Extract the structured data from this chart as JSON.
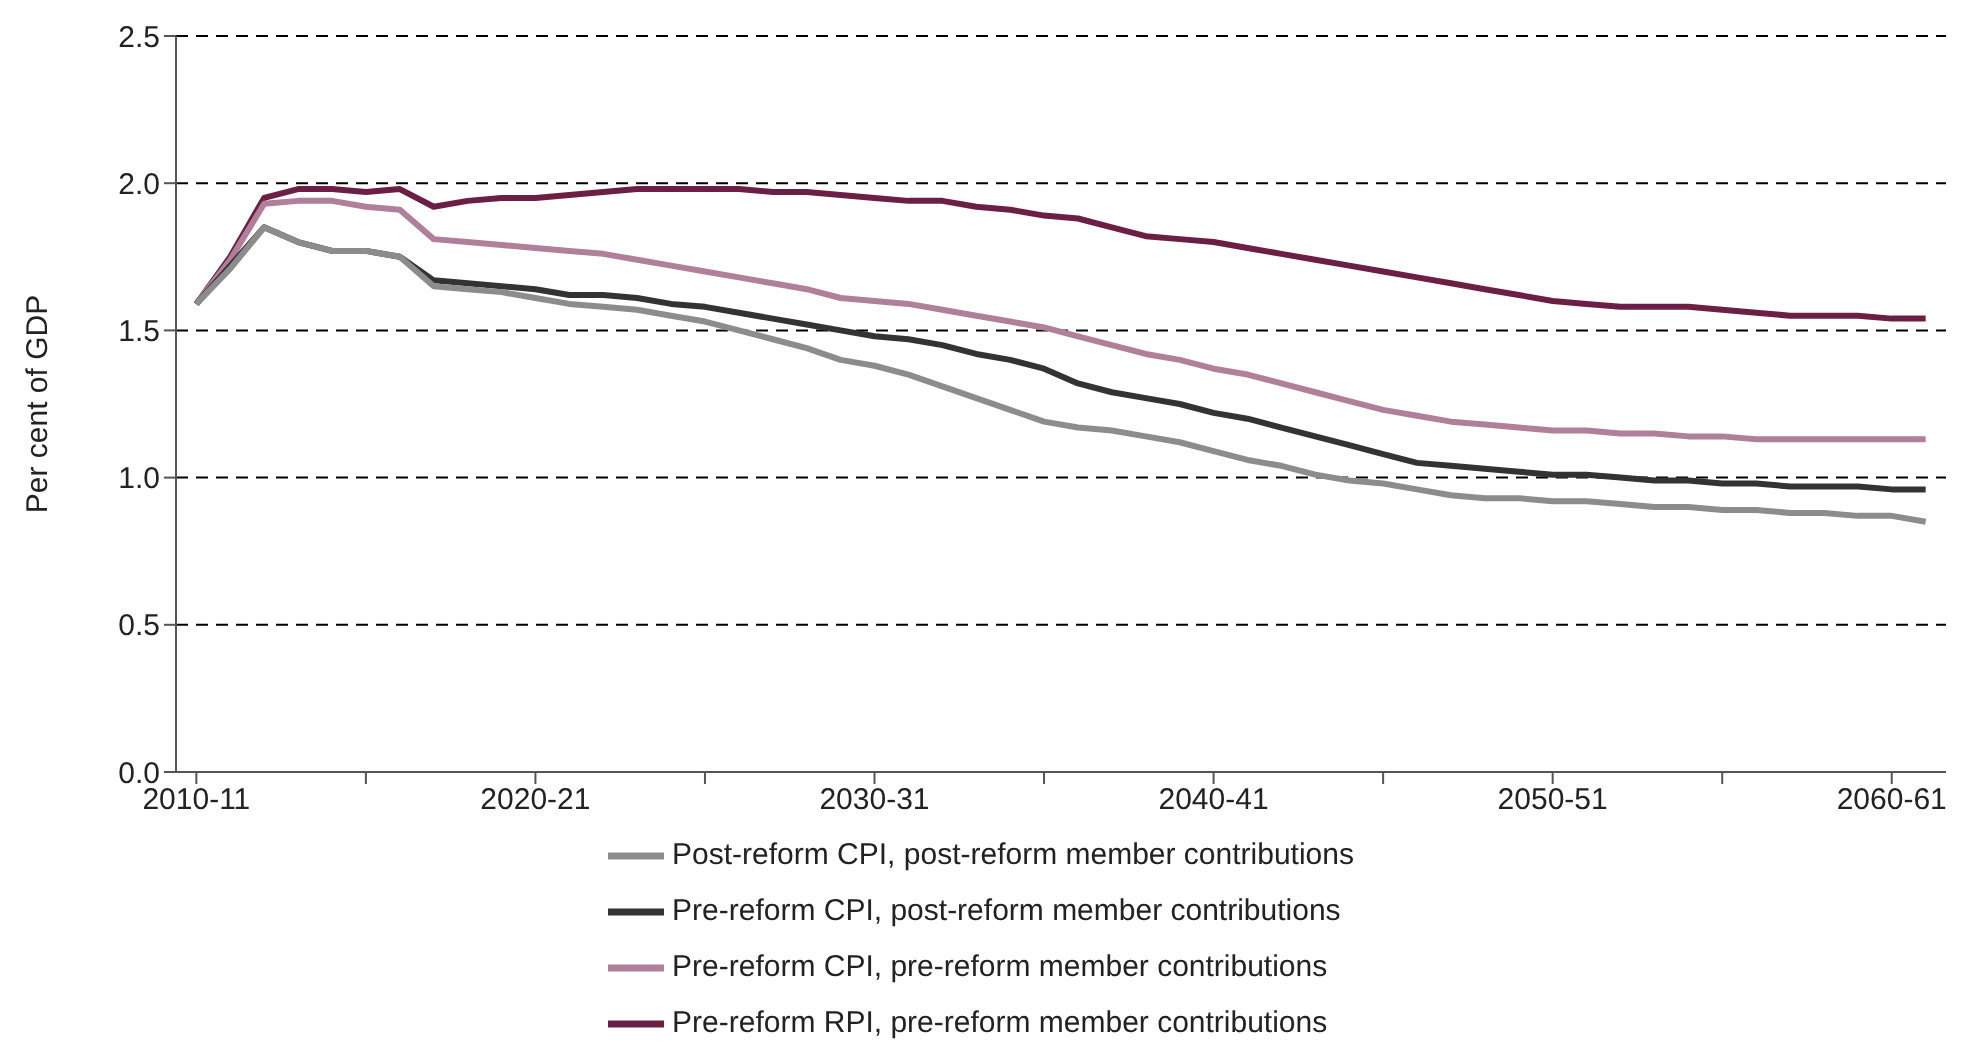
{
  "chart_data": {
    "type": "line",
    "ylabel": "Per cent of GDP",
    "categories": [
      "2010-11",
      null,
      null,
      null,
      null,
      null,
      null,
      null,
      null,
      null,
      "2020-21",
      null,
      null,
      null,
      null,
      null,
      null,
      null,
      null,
      null,
      "2030-31",
      null,
      null,
      null,
      null,
      null,
      null,
      null,
      null,
      null,
      "2040-41",
      null,
      null,
      null,
      null,
      null,
      null,
      null,
      null,
      null,
      "2050-51",
      null,
      null,
      null,
      null,
      null,
      null,
      null,
      null,
      null,
      "2060-61",
      null
    ],
    "series": [
      {
        "name": "Pre-reform RPI, pre-reform member contributions",
        "color": "#6b1f45",
        "values": [
          1.59,
          1.75,
          1.95,
          1.98,
          1.98,
          1.97,
          1.98,
          1.92,
          1.94,
          1.95,
          1.95,
          1.96,
          1.97,
          1.98,
          1.98,
          1.98,
          1.98,
          1.97,
          1.97,
          1.96,
          1.95,
          1.94,
          1.94,
          1.92,
          1.91,
          1.89,
          1.88,
          1.85,
          1.82,
          1.81,
          1.8,
          1.78,
          1.76,
          1.74,
          1.72,
          1.7,
          1.68,
          1.66,
          1.64,
          1.62,
          1.6,
          1.59,
          1.58,
          1.58,
          1.58,
          1.57,
          1.56,
          1.55,
          1.55,
          1.55,
          1.54,
          1.54
        ]
      },
      {
        "name": "Pre-reform CPI, pre-reform member contributions",
        "color": "#b07f9a",
        "values": [
          1.59,
          1.74,
          1.93,
          1.94,
          1.94,
          1.92,
          1.91,
          1.81,
          1.8,
          1.79,
          1.78,
          1.77,
          1.76,
          1.74,
          1.72,
          1.7,
          1.68,
          1.66,
          1.64,
          1.61,
          1.6,
          1.59,
          1.57,
          1.55,
          1.53,
          1.51,
          1.48,
          1.45,
          1.42,
          1.4,
          1.37,
          1.35,
          1.32,
          1.29,
          1.26,
          1.23,
          1.21,
          1.19,
          1.18,
          1.17,
          1.16,
          1.16,
          1.15,
          1.15,
          1.14,
          1.14,
          1.13,
          1.13,
          1.13,
          1.13,
          1.13,
          1.13
        ]
      },
      {
        "name": "Pre-reform CPI, post-reform member contributions",
        "color": "#333333",
        "values": [
          1.59,
          1.72,
          1.85,
          1.8,
          1.77,
          1.77,
          1.75,
          1.67,
          1.66,
          1.65,
          1.64,
          1.62,
          1.62,
          1.61,
          1.59,
          1.58,
          1.56,
          1.54,
          1.52,
          1.5,
          1.48,
          1.47,
          1.45,
          1.42,
          1.4,
          1.37,
          1.32,
          1.29,
          1.27,
          1.25,
          1.22,
          1.2,
          1.17,
          1.14,
          1.11,
          1.08,
          1.05,
          1.04,
          1.03,
          1.02,
          1.01,
          1.01,
          1.0,
          0.99,
          0.99,
          0.98,
          0.98,
          0.97,
          0.97,
          0.97,
          0.96,
          0.96
        ]
      },
      {
        "name": "Post-reform CPI, post-reform member contributions",
        "color": "#8c8c8c",
        "values": [
          1.59,
          1.71,
          1.85,
          1.8,
          1.77,
          1.77,
          1.75,
          1.65,
          1.64,
          1.63,
          1.61,
          1.59,
          1.58,
          1.57,
          1.55,
          1.53,
          1.5,
          1.47,
          1.44,
          1.4,
          1.38,
          1.35,
          1.31,
          1.27,
          1.23,
          1.19,
          1.17,
          1.16,
          1.14,
          1.12,
          1.09,
          1.06,
          1.04,
          1.01,
          0.99,
          0.98,
          0.96,
          0.94,
          0.93,
          0.93,
          0.92,
          0.92,
          0.91,
          0.9,
          0.9,
          0.89,
          0.89,
          0.88,
          0.88,
          0.87,
          0.87,
          0.85
        ]
      }
    ],
    "ylim": [
      0,
      2.5
    ],
    "yticks": [
      {
        "value": 0,
        "label": "0.0"
      },
      {
        "value": 0.5,
        "label": "0.5"
      },
      {
        "value": 1,
        "label": "1.0"
      },
      {
        "value": 1.5,
        "label": "1.5"
      },
      {
        "value": 2,
        "label": "2.0"
      },
      {
        "value": 2.5,
        "label": "2.5"
      }
    ],
    "grid": "y",
    "legend": "bottom",
    "marker": "none",
    "line_style": "solid"
  }
}
